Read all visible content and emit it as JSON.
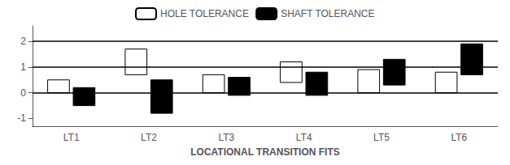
{
  "chart_data": {
    "type": "bar",
    "title": "LOCATIONAL TRANSITION FITS",
    "categories": [
      "LT1",
      "LT2",
      "LT3",
      "LT4",
      "LT5",
      "LT6"
    ],
    "series": [
      {
        "name": "HOLE TOLERANCE",
        "color": "#ffffff",
        "values": [
          [
            0.0,
            0.5
          ],
          [
            0.7,
            1.7
          ],
          [
            0.0,
            0.7
          ],
          [
            0.4,
            1.2
          ],
          [
            0.0,
            0.9
          ],
          [
            0.0,
            0.8
          ]
        ]
      },
      {
        "name": "SHAFT TOLERANCE",
        "color": "#000000",
        "values": [
          [
            -0.5,
            0.2
          ],
          [
            -0.8,
            0.5
          ],
          [
            -0.1,
            0.6
          ],
          [
            -0.1,
            0.8
          ],
          [
            0.3,
            1.3
          ],
          [
            0.7,
            1.9
          ]
        ]
      }
    ],
    "reference_lines": [
      0,
      1,
      2
    ],
    "ylim": [
      -1.3,
      2.6
    ],
    "yticks": [
      -1,
      0,
      1,
      2
    ],
    "grid": false,
    "legend": "top"
  }
}
